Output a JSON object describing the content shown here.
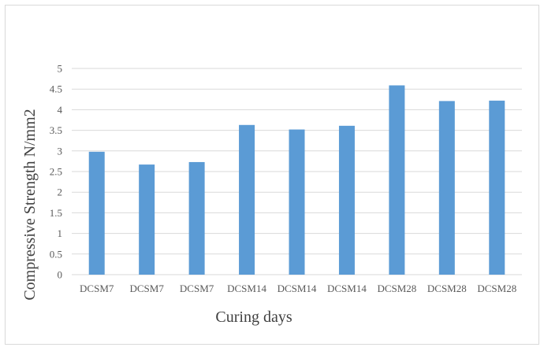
{
  "chart_data": {
    "type": "bar",
    "categories": [
      "DCSM7",
      "DCSM7",
      "DCSM7",
      "DCSM14",
      "DCSM14",
      "DCSM14",
      "DCSM28",
      "DCSM28",
      "DCSM28"
    ],
    "values": [
      2.98,
      2.67,
      2.73,
      3.63,
      3.52,
      3.61,
      4.59,
      4.21,
      4.22
    ],
    "xlabel": "Curing days",
    "ylabel": "Compressive Strength N/mm2",
    "ylim": [
      0,
      5
    ],
    "yticks": [
      "0",
      "0.5",
      "1",
      "1.5",
      "2",
      "2.5",
      "3",
      "3.5",
      "4",
      "4.5",
      "5"
    ],
    "grid": true,
    "legend": "none",
    "bar_color": "#5b9bd5",
    "grid_color": "#d9d9d9"
  }
}
